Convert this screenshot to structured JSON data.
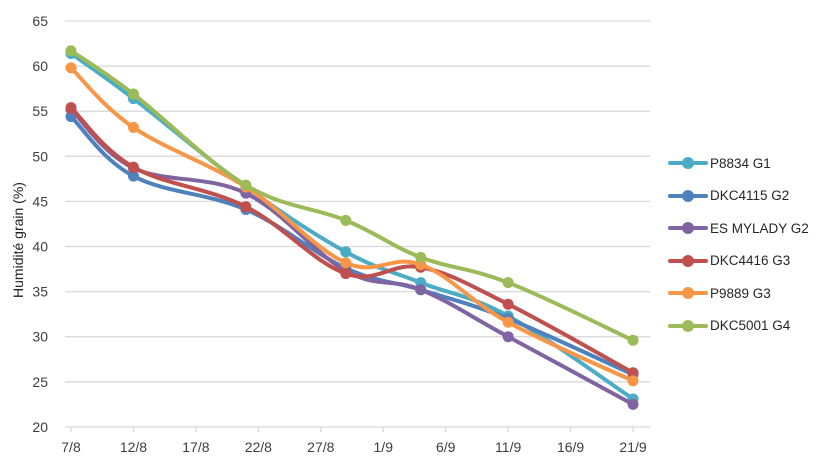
{
  "chart_data": {
    "type": "line",
    "title": "",
    "xlabel": "",
    "ylabel": "Humidité grain (%)",
    "ylim": [
      20,
      65
    ],
    "yticks": [
      20,
      25,
      30,
      35,
      40,
      45,
      50,
      55,
      60,
      65
    ],
    "xticks": [
      "7/8",
      "12/8",
      "17/8",
      "22/8",
      "27/8",
      "1/9",
      "6/9",
      "11/9",
      "16/9",
      "21/9"
    ],
    "x_day_offsets": [
      0,
      5,
      14,
      22,
      28,
      35,
      45
    ],
    "x_dates": [
      "7/8",
      "12/8",
      "21/8",
      "29/8",
      "4/9",
      "11/9",
      "21/9"
    ],
    "grid": "horizontal",
    "legend_position": "right",
    "series": [
      {
        "name": "P8834 G1",
        "color": "#4BACC6",
        "values": [
          61.4,
          56.4,
          46.6,
          39.4,
          36.0,
          32.3,
          23.1
        ]
      },
      {
        "name": "DKC4115 G2",
        "color": "#4F81BD",
        "values": [
          54.4,
          47.8,
          44.1,
          37.6,
          35.2,
          32.0,
          25.8
        ]
      },
      {
        "name": "ES MYLADY G2",
        "color": "#8064A2",
        "values": [
          55.2,
          48.7,
          45.9,
          37.3,
          35.2,
          30.0,
          22.5
        ]
      },
      {
        "name": "DKC4416 G3",
        "color": "#C0504D",
        "values": [
          55.4,
          48.8,
          44.4,
          37.0,
          37.7,
          33.6,
          26.0
        ]
      },
      {
        "name": "P9889 G3",
        "color": "#F79646",
        "values": [
          59.8,
          53.2,
          46.6,
          38.2,
          38.0,
          31.6,
          25.1
        ]
      },
      {
        "name": "DKC5001 G4",
        "color": "#9BBB59",
        "values": [
          61.7,
          56.9,
          46.8,
          42.9,
          38.8,
          36.0,
          29.6
        ]
      }
    ]
  }
}
